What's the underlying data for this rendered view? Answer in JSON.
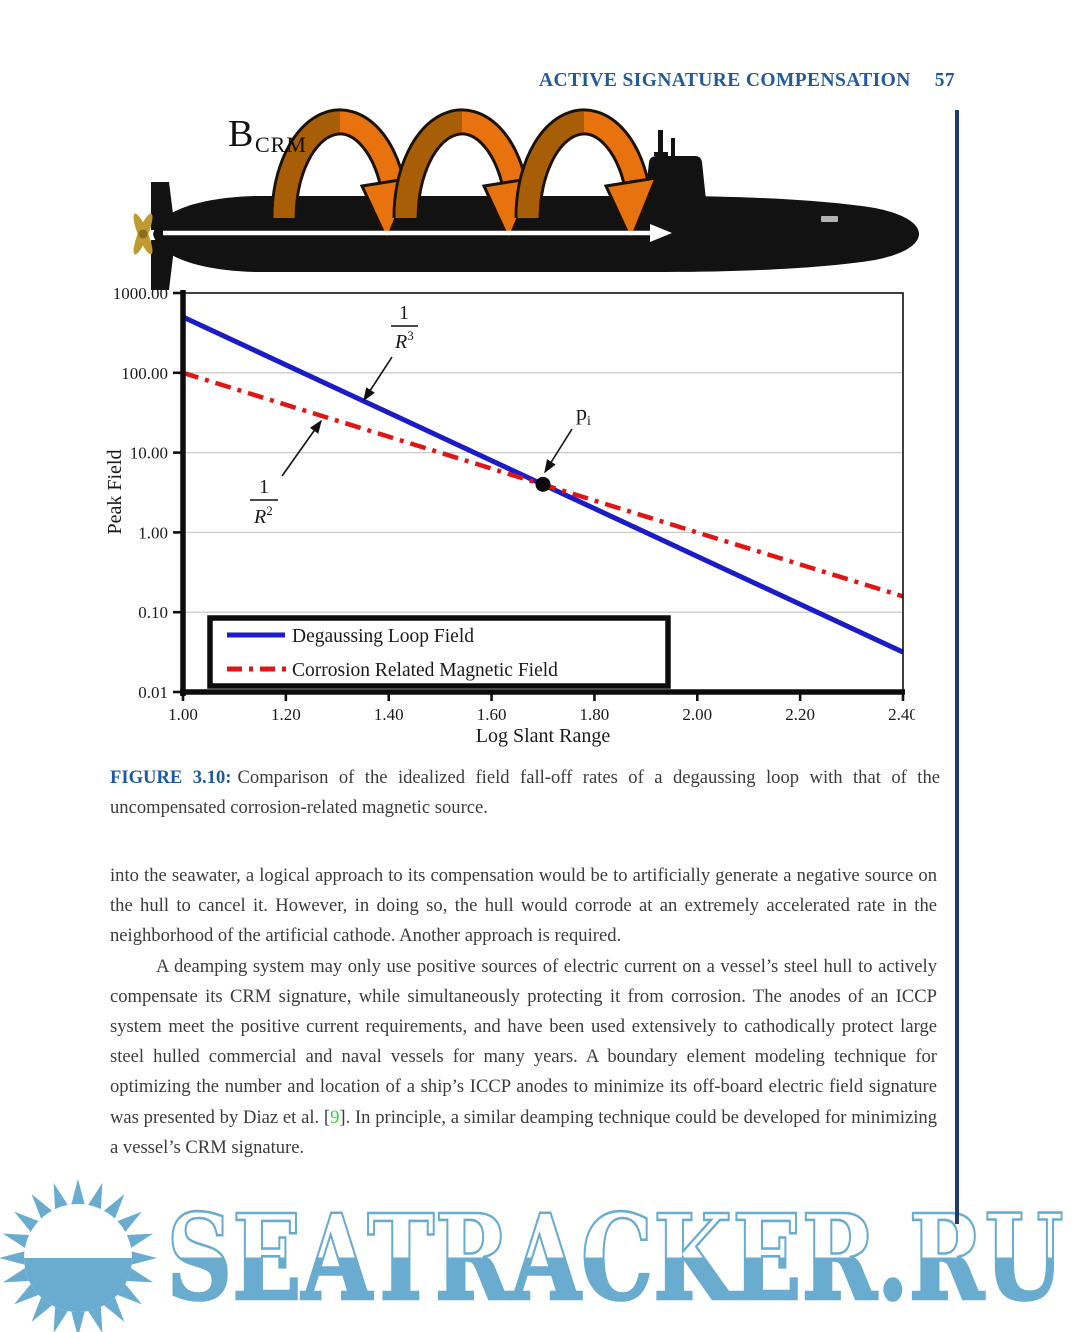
{
  "header": {
    "title": "ACTIVE SIGNATURE COMPENSATION",
    "page_number": "57"
  },
  "figure": {
    "field_label": "B",
    "field_label_sub": "CRM",
    "hull_color": "#121212",
    "arch_color": "#e8720e",
    "arch_shade_color": "#a85d07",
    "arch_outline_color": "#1a1205",
    "propeller_color": "#bf9a30",
    "flow_arrow_color": "#ffffff"
  },
  "chart_data": {
    "type": "line",
    "title": "",
    "xlabel": "Log Slant Range",
    "ylabel": "Peak Field",
    "x_scale": "linear",
    "y_scale": "log",
    "xlim": [
      1.0,
      2.4
    ],
    "ylim": [
      0.01,
      1000
    ],
    "x_ticks": [
      1.0,
      1.2,
      1.4,
      1.6,
      1.8,
      2.0,
      2.2,
      2.4
    ],
    "x_tick_labels": [
      "1.00",
      "1.20",
      "1.40",
      "1.60",
      "1.80",
      "2.00",
      "2.20",
      "2.40"
    ],
    "y_tick_values": [
      1000,
      100,
      10,
      1,
      0.1,
      0.01
    ],
    "y_tick_labels": [
      "1000.00",
      "100.00",
      "10.00",
      "1.00",
      "0.10",
      "0.01"
    ],
    "grid": "horizontal decade gridlines",
    "legend_position": "inside bottom-left",
    "series": [
      {
        "name": "Degaussing Loop Field",
        "color": "#1b1bc8",
        "line_style": "solid",
        "falloff": "1/R^3",
        "x": [
          1.0,
          2.4
        ],
        "y": [
          500,
          0.0316
        ]
      },
      {
        "name": "Corrosion Related Magnetic Field",
        "color": "#e01616",
        "line_style": "dash-dot",
        "falloff": "1/R^2",
        "x": [
          1.0,
          2.4
        ],
        "y": [
          100,
          0.158
        ]
      }
    ],
    "annotations": [
      {
        "id": "r3",
        "numerator": "1",
        "denominator": "R",
        "exponent": "3",
        "points_to": "Degaussing Loop Field line"
      },
      {
        "id": "r2",
        "numerator": "1",
        "denominator": "R",
        "exponent": "2",
        "points_to": "Corrosion Related Magnetic Field line"
      },
      {
        "id": "pi",
        "label_main": "p",
        "label_sub": "i",
        "point_x": 1.7,
        "point_y": 4,
        "marker": "black dot"
      }
    ]
  },
  "caption": {
    "label": "FIGURE 3.10:",
    "text": "Comparison of the idealized field fall-off rates of a degaussing loop with that of the uncompensated corrosion-related magnetic source."
  },
  "body": {
    "paragraph1": "into the seawater, a logical approach to its compensation would be to artificially generate a negative source on the hull to cancel it. However, in doing so, the hull would corrode at an extremely accelerated rate in the neighborhood of the artificial cathode. Another approach is required.",
    "paragraph2_before": "A deamping system may only use positive sources of electric current on a vessel’s steel hull to actively compensate its CRM signature, while simultaneously protecting it from corrosion. The anodes of an ICCP system meet the positive current requirements, and have been used extensively to cathodically protect large steel hulled commercial and naval vessels for many years. A boundary element modeling technique for optimizing the number and location of a ship’s ICCP anodes to minimize its off-board electric field signature was presented by Diaz et al. [",
    "paragraph2_ref": "9",
    "paragraph2_after": "]. In principle, a similar deamping technique could be developed for minimizing a vessel’s CRM signature.",
    "paragraph2_first_words": "A deamping system"
  },
  "watermark": {
    "text": "SEATRACKER.RU",
    "color": "#6aacd0"
  },
  "colors": {
    "header_blue": "#245a9a",
    "caption_blue": "#1d5a9e",
    "body_text": "#3b3b3b",
    "reference_green": "#2fd53a",
    "margin_rule_navy": "#1c3c72",
    "page_background": "#ffffff"
  }
}
